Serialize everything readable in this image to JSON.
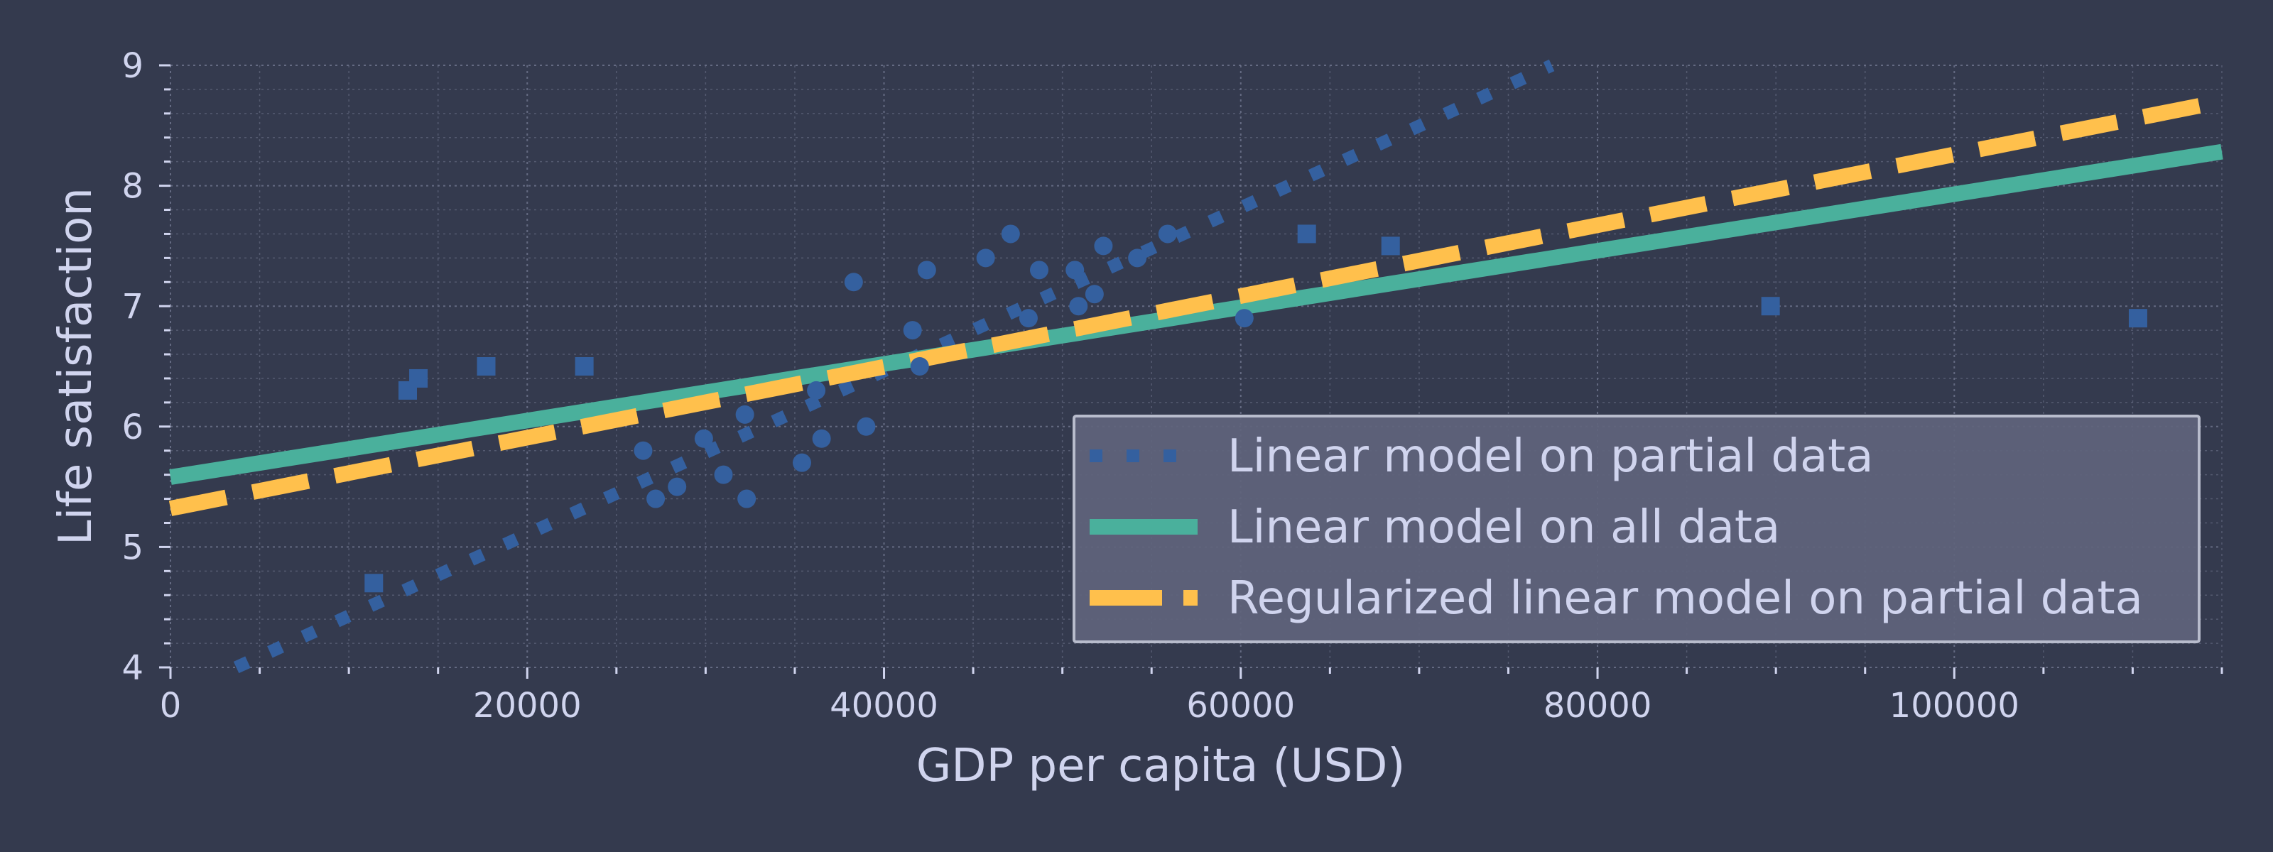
{
  "chart_data": {
    "type": "scatter",
    "xlabel": "GDP per capita (USD)",
    "ylabel": "Life satisfaction",
    "xlim": [
      0,
      115000
    ],
    "ylim": [
      4,
      9
    ],
    "x_ticks": [
      0,
      20000,
      40000,
      60000,
      80000,
      100000
    ],
    "y_ticks": [
      4,
      5,
      6,
      7,
      8,
      9
    ],
    "grid": true,
    "legend_position": "lower-right",
    "colors": {
      "background": "#343a4e",
      "points": "#34609f",
      "partial_model": "#34609f",
      "all_model": "#4ab09c",
      "regularized_model": "#ffc04c",
      "text": "#d0d4ee",
      "grid": "#6a7088",
      "legend_bg": "#5f647c",
      "legend_border": "#b8bccc"
    },
    "points_partial": [
      {
        "x": 26500,
        "y": 5.8
      },
      {
        "x": 27200,
        "y": 5.4
      },
      {
        "x": 28400,
        "y": 5.5
      },
      {
        "x": 29900,
        "y": 5.9
      },
      {
        "x": 31000,
        "y": 5.6
      },
      {
        "x": 32200,
        "y": 6.1
      },
      {
        "x": 32300,
        "y": 5.4
      },
      {
        "x": 35400,
        "y": 5.7
      },
      {
        "x": 36200,
        "y": 6.3
      },
      {
        "x": 36500,
        "y": 5.9
      },
      {
        "x": 38300,
        "y": 7.2
      },
      {
        "x": 39000,
        "y": 6.0
      },
      {
        "x": 41600,
        "y": 6.8
      },
      {
        "x": 42000,
        "y": 6.5
      },
      {
        "x": 42400,
        "y": 7.3
      },
      {
        "x": 45700,
        "y": 7.4
      },
      {
        "x": 47100,
        "y": 7.6
      },
      {
        "x": 48100,
        "y": 6.9
      },
      {
        "x": 48700,
        "y": 7.3
      },
      {
        "x": 50700,
        "y": 7.3
      },
      {
        "x": 50900,
        "y": 7.0
      },
      {
        "x": 51800,
        "y": 7.1
      },
      {
        "x": 52300,
        "y": 7.5
      },
      {
        "x": 54200,
        "y": 7.4
      },
      {
        "x": 55900,
        "y": 7.6
      },
      {
        "x": 60200,
        "y": 6.9
      }
    ],
    "points_missing": [
      {
        "x": 11400,
        "y": 4.7
      },
      {
        "x": 13300,
        "y": 6.3
      },
      {
        "x": 13900,
        "y": 6.4
      },
      {
        "x": 17700,
        "y": 6.5
      },
      {
        "x": 23200,
        "y": 6.5
      },
      {
        "x": 63700,
        "y": 7.6
      },
      {
        "x": 68400,
        "y": 7.5
      },
      {
        "x": 89700,
        "y": 7.0
      },
      {
        "x": 110300,
        "y": 6.9
      }
    ],
    "series": [
      {
        "name": "Linear model on partial data",
        "intercept": 3.75,
        "slope": 6.78e-05,
        "style": "dotted"
      },
      {
        "name": "Linear model on all data",
        "intercept": 5.58,
        "slope": 2.35e-05,
        "style": "solid"
      },
      {
        "name": "Regularized linear model on partial data",
        "intercept": 5.32,
        "slope": 2.94e-05,
        "style": "dashed"
      }
    ]
  }
}
